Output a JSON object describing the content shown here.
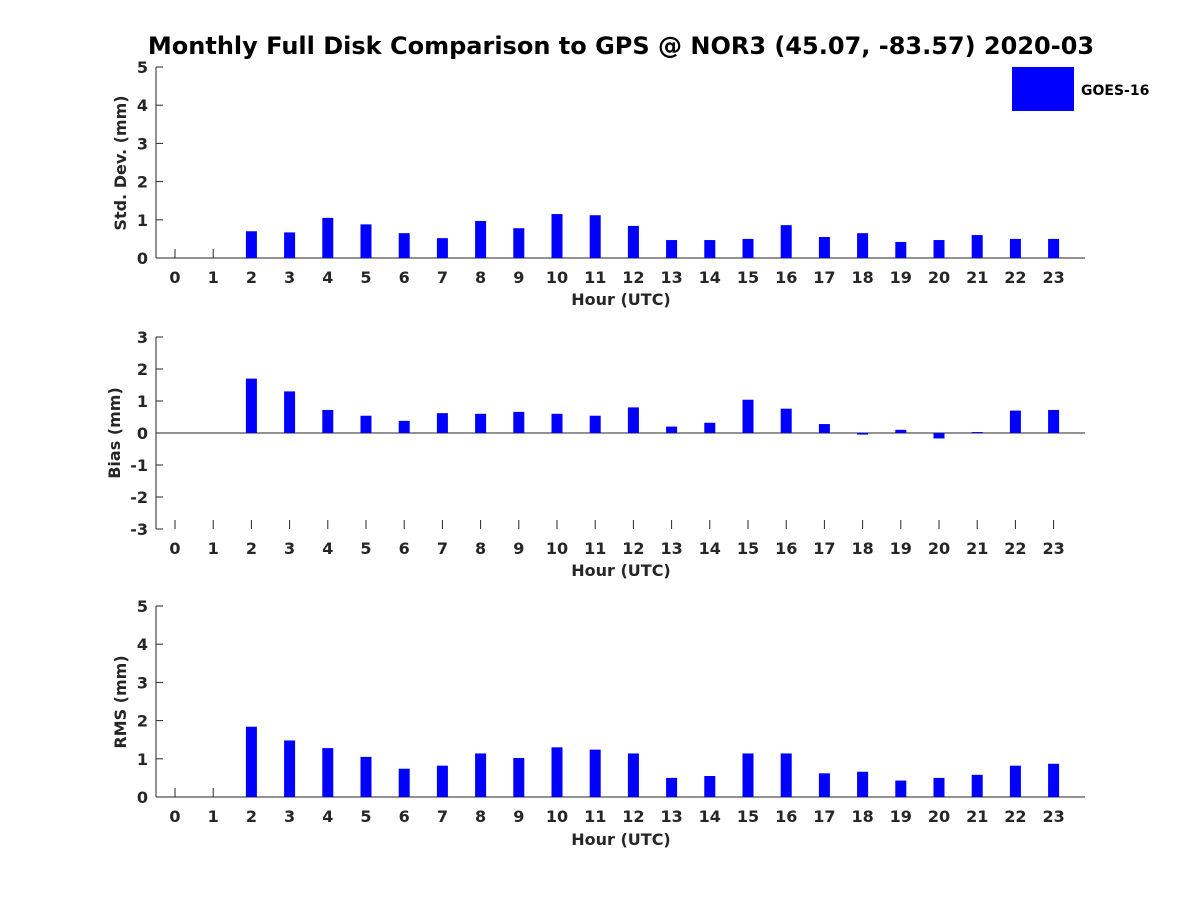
{
  "colors": {
    "bar": "#0000ff",
    "axis": "#262626",
    "background": "#ffffff"
  },
  "chart_data": {
    "type": "bar",
    "title": "Monthly Full Disk Comparison to GPS @ NOR3 (45.07, -83.57) 2020-03",
    "legend": {
      "label": "GOES-16",
      "placement": "top-right"
    },
    "categories": [
      "0",
      "1",
      "2",
      "3",
      "4",
      "5",
      "6",
      "7",
      "8",
      "9",
      "10",
      "11",
      "12",
      "13",
      "14",
      "15",
      "16",
      "17",
      "18",
      "19",
      "20",
      "21",
      "22",
      "23"
    ],
    "panels": [
      {
        "name": "std-dev",
        "ylabel": "Std. Dev. (mm)",
        "xlabel": "Hour (UTC)",
        "ylim": [
          0,
          5
        ],
        "yticks": [
          "0",
          "1",
          "2",
          "3",
          "4",
          "5"
        ],
        "values": [
          null,
          null,
          0.7,
          0.67,
          1.05,
          0.88,
          0.65,
          0.52,
          0.97,
          0.78,
          1.15,
          1.12,
          0.84,
          0.47,
          0.47,
          0.5,
          0.86,
          0.55,
          0.65,
          0.42,
          0.47,
          0.6,
          0.5,
          0.5
        ]
      },
      {
        "name": "bias",
        "ylabel": "Bias (mm)",
        "xlabel": "Hour (UTC)",
        "ylim": [
          -3,
          3
        ],
        "yticks": [
          "-3",
          "-2",
          "-1",
          "0",
          "1",
          "2",
          "3"
        ],
        "values": [
          null,
          null,
          1.7,
          1.3,
          0.72,
          0.54,
          0.38,
          0.62,
          0.6,
          0.66,
          0.6,
          0.54,
          0.8,
          0.2,
          0.32,
          1.04,
          0.76,
          0.28,
          -0.05,
          0.1,
          -0.17,
          0.03,
          0.7,
          0.72
        ]
      },
      {
        "name": "rms",
        "ylabel": "RMS (mm)",
        "xlabel": "Hour (UTC)",
        "ylim": [
          0,
          5
        ],
        "yticks": [
          "0",
          "1",
          "2",
          "3",
          "4",
          "5"
        ],
        "values": [
          null,
          null,
          1.84,
          1.48,
          1.28,
          1.05,
          0.74,
          0.82,
          1.14,
          1.02,
          1.3,
          1.24,
          1.14,
          0.5,
          0.55,
          1.14,
          1.14,
          0.62,
          0.66,
          0.43,
          0.5,
          0.58,
          0.82,
          0.87
        ]
      }
    ]
  }
}
